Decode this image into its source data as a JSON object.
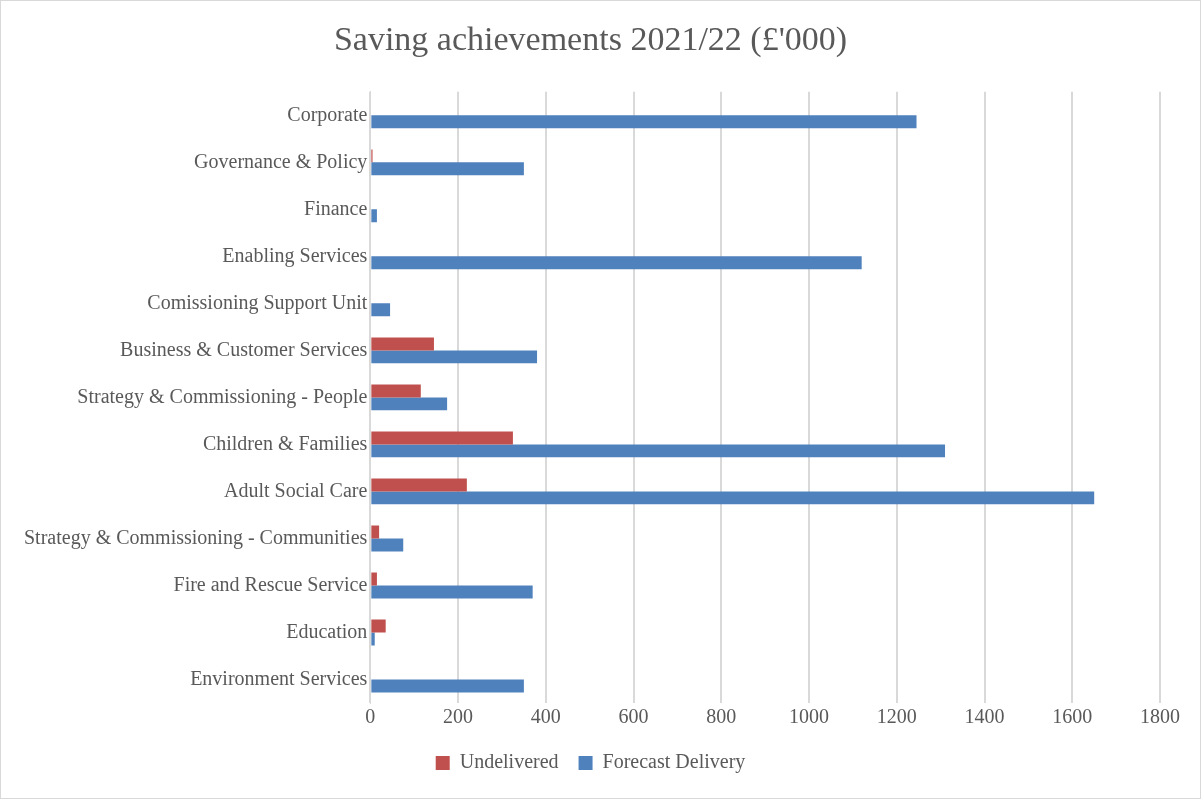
{
  "chart_data": {
    "type": "bar",
    "orientation": "horizontal",
    "title": "Saving achievements 2021/22 (£'000)",
    "categories": [
      "Corporate",
      "Governance & Policy",
      "Finance",
      "Enabling Services",
      "Comissioning Support Unit",
      "Business & Customer Services",
      "Strategy & Commissioning - People",
      "Children & Families",
      "Adult Social Care",
      "Strategy & Commissioning - Communities",
      "Fire and Rescue Service",
      "Education",
      "Environment Services"
    ],
    "series": [
      {
        "name": "Undelivered",
        "color": "#c0504d",
        "values": [
          0,
          5,
          0,
          0,
          0,
          145,
          115,
          325,
          220,
          20,
          15,
          35,
          0
        ]
      },
      {
        "name": "Forecast Delivery",
        "color": "#4f81bd",
        "values": [
          1245,
          350,
          15,
          1120,
          45,
          380,
          175,
          1310,
          1650,
          75,
          370,
          10,
          350
        ]
      }
    ],
    "xlim": [
      0,
      1800
    ],
    "xticks": [
      0,
      200,
      400,
      600,
      800,
      1000,
      1200,
      1400,
      1600,
      1800
    ],
    "grid": "x",
    "legend": "bottom"
  }
}
